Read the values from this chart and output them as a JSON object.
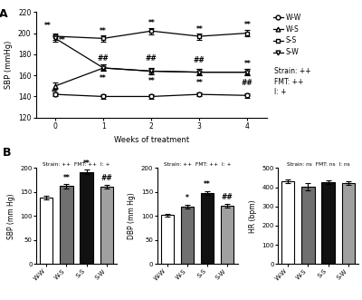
{
  "panel_A": {
    "weeks": [
      0,
      1,
      2,
      3,
      4
    ],
    "WW": {
      "mean": [
        142,
        140,
        140,
        142,
        141
      ],
      "sem": [
        2,
        2,
        2,
        2,
        2
      ]
    },
    "WS": {
      "mean": [
        150,
        167,
        164,
        163,
        163
      ],
      "sem": [
        3,
        3,
        3,
        3,
        3
      ]
    },
    "SS": {
      "mean": [
        197,
        195,
        202,
        197,
        200
      ],
      "sem": [
        3,
        3,
        3,
        3,
        3
      ]
    },
    "SW": {
      "mean": [
        195,
        167,
        164,
        163,
        163
      ],
      "sem": [
        3,
        3,
        3,
        3,
        3
      ]
    },
    "ylabel": "SBP (mmHg)",
    "xlabel": "Weeks of treatment",
    "ylim": [
      120,
      220
    ],
    "yticks": [
      120,
      140,
      160,
      180,
      200,
      220
    ],
    "legend_labels": [
      "W-W",
      "W-S",
      "S-S",
      "S-W"
    ],
    "stats_text": "Strain: ++\nFMT: ++\nI: +"
  },
  "panel_B_SBP": {
    "categories": [
      "W-W",
      "W-S",
      "S-S",
      "S-W"
    ],
    "values": [
      138,
      162,
      192,
      161
    ],
    "errors": [
      4,
      4,
      4,
      4
    ],
    "colors": [
      "white",
      "#707070",
      "#111111",
      "#a0a0a0"
    ],
    "ylabel": "SBP (mm Hg)",
    "ylim": [
      0,
      200
    ],
    "yticks": [
      0,
      50,
      100,
      150,
      200
    ],
    "title": "Strain: ++  FMT: ++  I: +",
    "annots": [
      "",
      "**",
      "**",
      "##"
    ]
  },
  "panel_B_DBP": {
    "categories": [
      "W-W",
      "W-S",
      "S-S",
      "S-W"
    ],
    "values": [
      102,
      119,
      148,
      122
    ],
    "errors": [
      3,
      4,
      4,
      4
    ],
    "colors": [
      "white",
      "#707070",
      "#111111",
      "#a0a0a0"
    ],
    "ylabel": "DBP (mm Hg)",
    "ylim": [
      0,
      200
    ],
    "yticks": [
      0,
      50,
      100,
      150,
      200
    ],
    "title": "Strain: ++  FMT: ++  I: +",
    "annots": [
      "",
      "*",
      "**",
      "##"
    ]
  },
  "panel_B_HR": {
    "categories": [
      "W-W",
      "W-S",
      "S-S",
      "S-W"
    ],
    "values": [
      430,
      403,
      425,
      422
    ],
    "errors": [
      10,
      18,
      10,
      10
    ],
    "colors": [
      "white",
      "#707070",
      "#111111",
      "#a0a0a0"
    ],
    "ylabel": "HR (bpm)",
    "ylim": [
      0,
      500
    ],
    "yticks": [
      0,
      100,
      200,
      300,
      400,
      500
    ],
    "title": "Strain: ns  FMT: ns  I: ns",
    "annots": [
      "",
      "",
      "",
      ""
    ]
  },
  "bar_edgecolor": "#000000",
  "lineplot_markers": [
    "o",
    "^",
    "s",
    "v"
  ]
}
